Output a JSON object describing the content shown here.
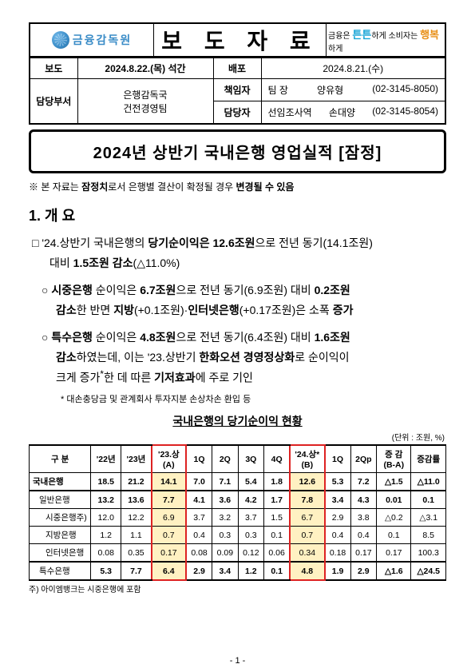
{
  "header": {
    "org": "금융감독원",
    "doc_type": "보 도 자 료",
    "tagline_pre": "금융은 ",
    "tagline_b1": "튼튼",
    "tagline_mid": "하게 소비자는 ",
    "tagline_b2": "행복",
    "tagline_post": "하게",
    "colors": {
      "brand_blue": "#3a8cc7",
      "tag_blue": "#1aa6d6",
      "tag_orange": "#e8911a"
    }
  },
  "meta": {
    "bodo_label": "보도",
    "bodo_value": "2024.8.22.(목) 석간",
    "baebo_label": "배포",
    "baebo_value": "2024.8.21.(수)",
    "dept_label": "담당부서",
    "dept_l1": "은행감독국",
    "dept_l2": "건전경영팀",
    "resp_label": "책임자",
    "resp_title": "팀  장",
    "resp_name": "양유형",
    "resp_tel": "(02-3145-8050)",
    "cont_label": "담당자",
    "cont_title": "선임조사역",
    "cont_name": "손대양",
    "cont_tel": "(02-3145-8054)"
  },
  "title": "2024년 상반기 국내은행 영업실적 [잠정]",
  "disclaimer": {
    "pre": "※ 본 자료는 ",
    "b1": "잠정치",
    "mid": "로서 은행별 결산이 확정될 경우 ",
    "b2": "변경될 수 있음"
  },
  "section1_title": "1. 개 요",
  "p1": {
    "l1a": "□ '24.상반기 국내은행의 ",
    "l1b": "당기순이익은 12.6조원",
    "l1c": "으로 전년 동기(14.1조원)",
    "l2a": "대비 ",
    "l2b": "1.5조원 감소",
    "l2c": "(△11.0%)"
  },
  "p2": {
    "l1a": "○ ",
    "l1b": "시중은행",
    "l1c": " 순이익은 ",
    "l1d": "6.7조원",
    "l1e": "으로 전년 동기(6.9조원) 대비 ",
    "l1f": "0.2조원",
    "l2a": "감소",
    "l2b": "한 반면 ",
    "l2c": "지방",
    "l2d": "(+0.1조원)·",
    "l2e": "인터넷은행",
    "l2f": "(+0.17조원)은 소폭 ",
    "l2g": "증가"
  },
  "p3": {
    "l1a": "○ ",
    "l1b": "특수은행",
    "l1c": " 순이익은 ",
    "l1d": "4.8조원",
    "l1e": "으로 전년 동기(6.4조원) 대비 ",
    "l1f": "1.6조원",
    "l2a": "감소",
    "l2b": "하였는데, 이는 '23.상반기 ",
    "l2c": "한화오션 경영정상화",
    "l2d": "로 순이익이",
    "l3a": "크게 증가",
    "l3b": "*",
    "l3c": "한 데 따른 ",
    "l3d": "기저효과",
    "l3e": "에 주로 기인"
  },
  "fn_star": "* 대손충당금 및 관계회사 투자지분 손상차손 환입 등",
  "table": {
    "title": "국내은행의 당기순이익 현황",
    "unit": "(단위 : 조원, %)",
    "columns": [
      "구 분",
      "'22년",
      "'23년",
      "'23.상\n(A)",
      "1Q",
      "2Q",
      "3Q",
      "4Q",
      "'24.상*\n(B)",
      "1Q",
      "2Qp",
      "증 감\n(B-A)",
      "증감률"
    ],
    "col_widths_pct": [
      12,
      7,
      7,
      8,
      6,
      6,
      6,
      6,
      8,
      6,
      6,
      8,
      8
    ],
    "highlight_cols": [
      3,
      8
    ],
    "red_box_cols": [
      3,
      8
    ],
    "rows": [
      {
        "label": "국내은행",
        "indent": 0,
        "bold": true,
        "cells": [
          "18.5",
          "21.2",
          "14.1",
          "7.0",
          "7.1",
          "5.4",
          "1.8",
          "12.6",
          "5.3",
          "7.2",
          "△1.5",
          "△11.0"
        ]
      },
      {
        "label": "일반은행",
        "indent": 1,
        "bold": true,
        "top_thick": true,
        "cells": [
          "13.2",
          "13.6",
          "7.7",
          "4.1",
          "3.6",
          "4.2",
          "1.7",
          "7.8",
          "3.4",
          "4.3",
          "0.01",
          "0.1"
        ]
      },
      {
        "label": "시중은행주)",
        "indent": 2,
        "bold": false,
        "cells": [
          "12.0",
          "12.2",
          "6.9",
          "3.7",
          "3.2",
          "3.7",
          "1.5",
          "6.7",
          "2.9",
          "3.8",
          "△0.2",
          "△3.1"
        ]
      },
      {
        "label": "지방은행",
        "indent": 2,
        "bold": false,
        "cells": [
          "1.2",
          "1.1",
          "0.7",
          "0.4",
          "0.3",
          "0.3",
          "0.1",
          "0.7",
          "0.4",
          "0.4",
          "0.1",
          "8.5"
        ]
      },
      {
        "label": "인터넷은행",
        "indent": 2,
        "bold": false,
        "cells": [
          "0.08",
          "0.35",
          "0.17",
          "0.08",
          "0.09",
          "0.12",
          "0.06",
          "0.34",
          "0.18",
          "0.17",
          "0.17",
          "100.3"
        ]
      },
      {
        "label": "특수은행",
        "indent": 1,
        "bold": true,
        "top_thick": true,
        "bot_thick": true,
        "cells": [
          "5.3",
          "7.7",
          "6.4",
          "2.9",
          "3.4",
          "1.2",
          "0.1",
          "4.8",
          "1.9",
          "2.9",
          "△1.6",
          "△24.5"
        ]
      }
    ],
    "footnote": "주) 아이엠뱅크는 시중은행에 포함",
    "colors": {
      "highlight_bg": "#fff1c2",
      "red": "#d22222"
    }
  },
  "page": "- 1 -"
}
